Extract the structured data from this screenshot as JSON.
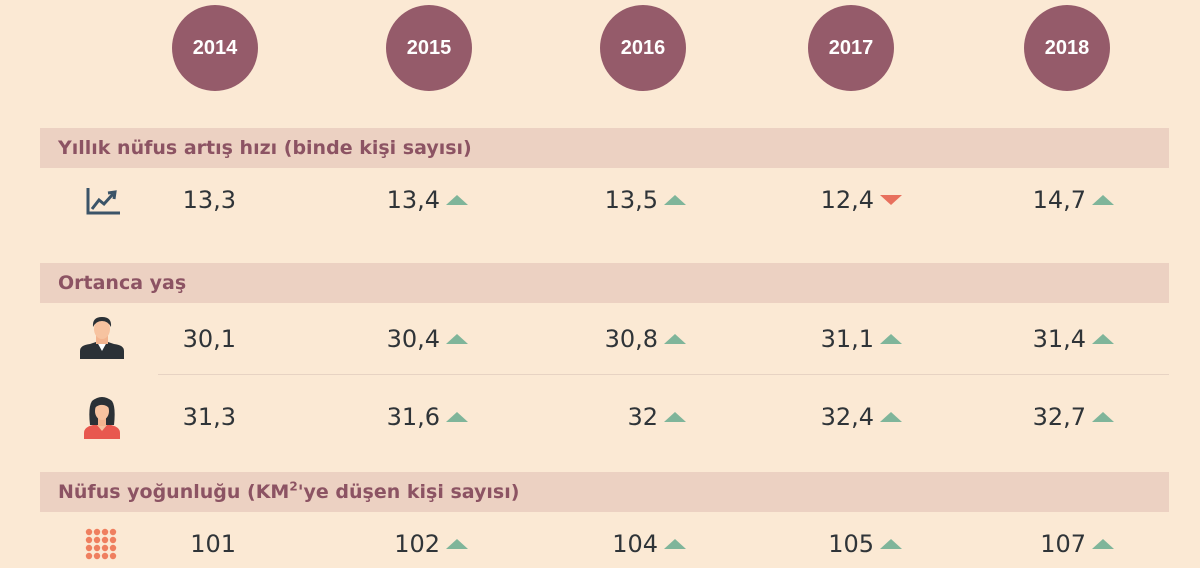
{
  "years": [
    "2014",
    "2015",
    "2016",
    "2017",
    "2018"
  ],
  "colors": {
    "background": "#fbe9d4",
    "circle": "#955b6a",
    "band": "#ecd1c2",
    "title": "#8c5363",
    "up": "#7fb59a",
    "down": "#e8705d"
  },
  "sections": [
    {
      "title": "Yıllık nüfus artış hızı (binde kişi sayısı)",
      "rows": [
        {
          "icon": "trend-up-chart-icon",
          "values": [
            "13,3",
            "13,4",
            "13,5",
            "12,4",
            "14,7"
          ],
          "trends": [
            null,
            "up",
            "up",
            "down",
            "up"
          ]
        }
      ]
    },
    {
      "title": "Ortanca yaş",
      "rows": [
        {
          "icon": "man-icon",
          "values": [
            "30,1",
            "30,4",
            "30,8",
            "31,1",
            "31,4"
          ],
          "trends": [
            null,
            "up",
            "up",
            "up",
            "up"
          ]
        },
        {
          "icon": "woman-icon",
          "values": [
            "31,3",
            "31,6",
            "32",
            "32,4",
            "32,7"
          ],
          "trends": [
            null,
            "up",
            "up",
            "up",
            "up"
          ]
        }
      ]
    },
    {
      "title_prefix": "Nüfus yoğunluğu (",
      "title_unit": "KM",
      "title_exp": "2",
      "title_suffix": "'ye düşen kişi sayısı)",
      "rows": [
        {
          "icon": "dot-grid-icon",
          "values": [
            "101",
            "102",
            "104",
            "105",
            "107"
          ],
          "trends": [
            null,
            "up",
            "up",
            "up",
            "up"
          ]
        }
      ]
    }
  ]
}
